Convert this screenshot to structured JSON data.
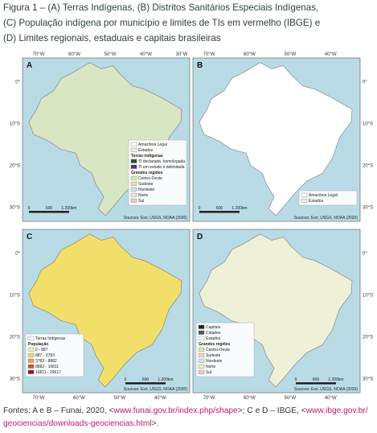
{
  "caption": {
    "lines": [
      "Figura 1 – (A) Terras Indígenas, (B) Distritos Sanitários Especiais Indígenas,",
      "(C) População indígena por município e limites de TIs em vermelho (IBGE) e",
      "(D) Limites regionais, estaduais e capitais brasileiras"
    ]
  },
  "panels": [
    {
      "letter": "A",
      "land": "#d9e6c4",
      "xlabels": [
        "70°W",
        "60°W",
        "50°W",
        "40°W",
        "30°W"
      ],
      "ylabels": [
        "0°",
        "10°S",
        "20°S",
        "30°S"
      ],
      "legend": [
        {
          "text": "Amazônia Legal",
          "color": "#ffffff"
        },
        {
          "text": "Estados",
          "color": "#eeeeee"
        },
        {
          "text": "Terras indígenas"
        },
        {
          "text": "TI declarada, homologada",
          "color": "#1f5c1f"
        },
        {
          "text": "TI em estudo e delimitada",
          "color": "#5a2a7a"
        },
        {
          "text": "Grandes regiões"
        },
        {
          "text": "Centro-Oeste",
          "color": "#d7e8b0"
        },
        {
          "text": "Sudeste",
          "color": "#f3d9b5"
        },
        {
          "text": "Nordeste",
          "color": "#cde3ef"
        },
        {
          "text": "Norte",
          "color": "#e6efcf"
        },
        {
          "text": "Sul",
          "color": "#efc9c9"
        }
      ],
      "scale": [
        "0",
        "600",
        "1.200km"
      ],
      "credit": "Sources: Esri, USGS, NOAA (2020)"
    },
    {
      "letter": "B",
      "land": "#ffffff",
      "xlabels": [
        "70°W",
        "60°W",
        "50°W",
        "40°W"
      ],
      "ylabels": [
        "0°",
        "10°S",
        "20°S",
        "30°S"
      ],
      "legend": [
        {
          "text": "Amazônia Legal",
          "color": "#ffffff"
        },
        {
          "text": "Estados",
          "color": "#eeeeee"
        }
      ],
      "scale": [
        "0",
        "600",
        "1.200km"
      ],
      "credit": "Sources: Esri, USGS, NOAA (2020)"
    },
    {
      "letter": "C",
      "land": "#f2df6a",
      "xlabels": [
        "70°W",
        "60°W",
        "50°W",
        "40°W"
      ],
      "ylabels": [
        "0°",
        "10°S",
        "20°S",
        "30°S"
      ],
      "legend": [
        {
          "text": "Terras Indígenas",
          "color": "#ffffff"
        },
        {
          "text": "População"
        },
        {
          "text": "0 - 887",
          "color": "#f7efb0"
        },
        {
          "text": "887 - 3783",
          "color": "#f2d56a"
        },
        {
          "text": "3783 - 8882",
          "color": "#e8a24a"
        },
        {
          "text": "8882 - 16811",
          "color": "#c8552e"
        },
        {
          "text": "16811 - 29617",
          "color": "#8a1a1a"
        }
      ],
      "scale": [
        "0",
        "600",
        "1.200km"
      ],
      "credit": "Sources: Esri, USGS, NOAA (2020)"
    },
    {
      "letter": "D",
      "land": "#eef0d8",
      "xlabels": [
        "70°W",
        "60°W",
        "50°W",
        "40°W"
      ],
      "ylabels": [
        "0°",
        "10°S",
        "20°S",
        "30°S"
      ],
      "legend": [
        {
          "text": "Capitais",
          "color": "#222222"
        },
        {
          "text": "Cidades",
          "color": "#555555"
        },
        {
          "text": "Estados",
          "color": "#ffffff"
        },
        {
          "text": "Grandes regiões"
        },
        {
          "text": "Centro-Oeste",
          "color": "#d7e8b0"
        },
        {
          "text": "Sudeste",
          "color": "#f3d9b5"
        },
        {
          "text": "Nordeste",
          "color": "#cde3ef"
        },
        {
          "text": "Norte",
          "color": "#e6efcf"
        },
        {
          "text": "Sul",
          "color": "#efc9c9"
        }
      ],
      "scale": [
        "0",
        "600",
        "1.200km"
      ],
      "credit": "Sources: Esri, USGS, NOAA (2020)"
    }
  ],
  "source": {
    "prefix": "Fontes: A e B – Funai, 2020, <",
    "url1": "www.funai.gov.br/index.php/shape",
    "middle": ">; C e D – IBGE, <",
    "url2a": "www.ibge.gov.br/",
    "url2b": "geociencias/downloads-geociencias.html",
    "suffix": ">."
  }
}
